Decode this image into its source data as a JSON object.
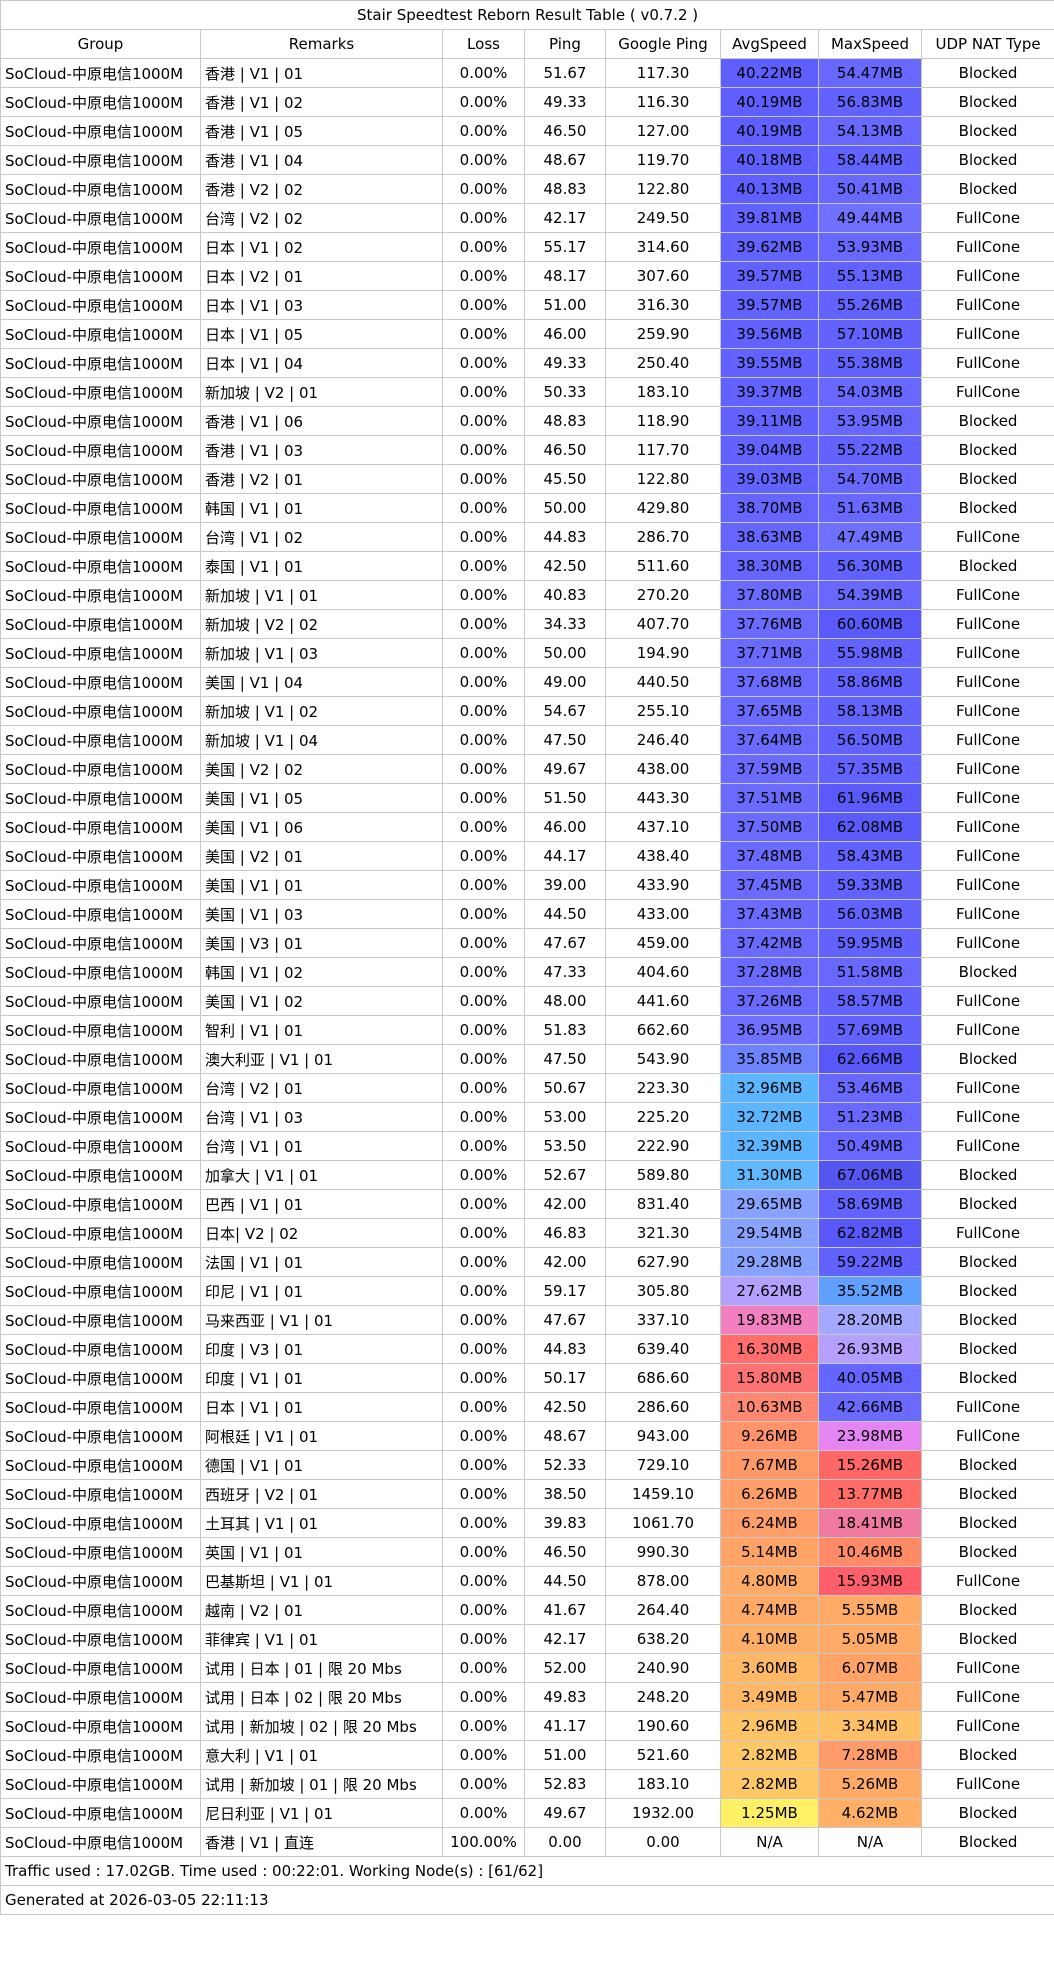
{
  "table": {
    "title": "Stair Speedtest Reborn Result Table ( v0.7.2 )",
    "headers": [
      "Group",
      "Remarks",
      "Loss",
      "Ping",
      "Google Ping",
      "AvgSpeed",
      "MaxSpeed",
      "UDP NAT Type"
    ],
    "rows": [
      [
        "SoCloud-中原电信1000M",
        "香港 | V1 | 01",
        "0.00%",
        "51.67",
        "117.30",
        "40.22MB",
        "54.47MB",
        "Blocked"
      ],
      [
        "SoCloud-中原电信1000M",
        "香港 | V1 | 02",
        "0.00%",
        "49.33",
        "116.30",
        "40.19MB",
        "56.83MB",
        "Blocked"
      ],
      [
        "SoCloud-中原电信1000M",
        "香港 | V1 | 05",
        "0.00%",
        "46.50",
        "127.00",
        "40.19MB",
        "54.13MB",
        "Blocked"
      ],
      [
        "SoCloud-中原电信1000M",
        "香港 | V1 | 04",
        "0.00%",
        "48.67",
        "119.70",
        "40.18MB",
        "58.44MB",
        "Blocked"
      ],
      [
        "SoCloud-中原电信1000M",
        "香港 | V2 | 02",
        "0.00%",
        "48.83",
        "122.80",
        "40.13MB",
        "50.41MB",
        "Blocked"
      ],
      [
        "SoCloud-中原电信1000M",
        "台湾 | V2 | 02",
        "0.00%",
        "42.17",
        "249.50",
        "39.81MB",
        "49.44MB",
        "FullCone"
      ],
      [
        "SoCloud-中原电信1000M",
        "日本 | V1 | 02",
        "0.00%",
        "55.17",
        "314.60",
        "39.62MB",
        "53.93MB",
        "FullCone"
      ],
      [
        "SoCloud-中原电信1000M",
        "日本 | V2 | 01",
        "0.00%",
        "48.17",
        "307.60",
        "39.57MB",
        "55.13MB",
        "FullCone"
      ],
      [
        "SoCloud-中原电信1000M",
        "日本 | V1 | 03",
        "0.00%",
        "51.00",
        "316.30",
        "39.57MB",
        "55.26MB",
        "FullCone"
      ],
      [
        "SoCloud-中原电信1000M",
        "日本 | V1 | 05",
        "0.00%",
        "46.00",
        "259.90",
        "39.56MB",
        "57.10MB",
        "FullCone"
      ],
      [
        "SoCloud-中原电信1000M",
        "日本 | V1 | 04",
        "0.00%",
        "49.33",
        "250.40",
        "39.55MB",
        "55.38MB",
        "FullCone"
      ],
      [
        "SoCloud-中原电信1000M",
        "新加坡 | V2 | 01",
        "0.00%",
        "50.33",
        "183.10",
        "39.37MB",
        "54.03MB",
        "FullCone"
      ],
      [
        "SoCloud-中原电信1000M",
        "香港 | V1 | 06",
        "0.00%",
        "48.83",
        "118.90",
        "39.11MB",
        "53.95MB",
        "Blocked"
      ],
      [
        "SoCloud-中原电信1000M",
        "香港 | V1 | 03",
        "0.00%",
        "46.50",
        "117.70",
        "39.04MB",
        "55.22MB",
        "Blocked"
      ],
      [
        "SoCloud-中原电信1000M",
        "香港 | V2 | 01",
        "0.00%",
        "45.50",
        "122.80",
        "39.03MB",
        "54.70MB",
        "Blocked"
      ],
      [
        "SoCloud-中原电信1000M",
        "韩国 | V1 | 01",
        "0.00%",
        "50.00",
        "429.80",
        "38.70MB",
        "51.63MB",
        "Blocked"
      ],
      [
        "SoCloud-中原电信1000M",
        "台湾 | V1 | 02",
        "0.00%",
        "44.83",
        "286.70",
        "38.63MB",
        "47.49MB",
        "FullCone"
      ],
      [
        "SoCloud-中原电信1000M",
        "泰国 | V1 | 01",
        "0.00%",
        "42.50",
        "511.60",
        "38.30MB",
        "56.30MB",
        "Blocked"
      ],
      [
        "SoCloud-中原电信1000M",
        "新加坡 | V1 | 01",
        "0.00%",
        "40.83",
        "270.20",
        "37.80MB",
        "54.39MB",
        "FullCone"
      ],
      [
        "SoCloud-中原电信1000M",
        "新加坡 | V2 | 02",
        "0.00%",
        "34.33",
        "407.70",
        "37.76MB",
        "60.60MB",
        "FullCone"
      ],
      [
        "SoCloud-中原电信1000M",
        "新加坡 | V1 | 03",
        "0.00%",
        "50.00",
        "194.90",
        "37.71MB",
        "55.98MB",
        "FullCone"
      ],
      [
        "SoCloud-中原电信1000M",
        "美国 | V1 | 04",
        "0.00%",
        "49.00",
        "440.50",
        "37.68MB",
        "58.86MB",
        "FullCone"
      ],
      [
        "SoCloud-中原电信1000M",
        "新加坡 | V1 | 02",
        "0.00%",
        "54.67",
        "255.10",
        "37.65MB",
        "58.13MB",
        "FullCone"
      ],
      [
        "SoCloud-中原电信1000M",
        "新加坡 | V1 | 04",
        "0.00%",
        "47.50",
        "246.40",
        "37.64MB",
        "56.50MB",
        "FullCone"
      ],
      [
        "SoCloud-中原电信1000M",
        "美国 | V2 | 02",
        "0.00%",
        "49.67",
        "438.00",
        "37.59MB",
        "57.35MB",
        "FullCone"
      ],
      [
        "SoCloud-中原电信1000M",
        "美国 | V1 | 05",
        "0.00%",
        "51.50",
        "443.30",
        "37.51MB",
        "61.96MB",
        "FullCone"
      ],
      [
        "SoCloud-中原电信1000M",
        "美国 | V1 | 06",
        "0.00%",
        "46.00",
        "437.10",
        "37.50MB",
        "62.08MB",
        "FullCone"
      ],
      [
        "SoCloud-中原电信1000M",
        "美国 | V2 | 01",
        "0.00%",
        "44.17",
        "438.40",
        "37.48MB",
        "58.43MB",
        "FullCone"
      ],
      [
        "SoCloud-中原电信1000M",
        "美国 | V1 | 01",
        "0.00%",
        "39.00",
        "433.90",
        "37.45MB",
        "59.33MB",
        "FullCone"
      ],
      [
        "SoCloud-中原电信1000M",
        "美国 | V1 | 03",
        "0.00%",
        "44.50",
        "433.00",
        "37.43MB",
        "56.03MB",
        "FullCone"
      ],
      [
        "SoCloud-中原电信1000M",
        "美国 | V3 | 01",
        "0.00%",
        "47.67",
        "459.00",
        "37.42MB",
        "59.95MB",
        "FullCone"
      ],
      [
        "SoCloud-中原电信1000M",
        "韩国 | V1 | 02",
        "0.00%",
        "47.33",
        "404.60",
        "37.28MB",
        "51.58MB",
        "Blocked"
      ],
      [
        "SoCloud-中原电信1000M",
        "美国 | V1 | 02",
        "0.00%",
        "48.00",
        "441.60",
        "37.26MB",
        "58.57MB",
        "FullCone"
      ],
      [
        "SoCloud-中原电信1000M",
        "智利  | V1 | 01",
        "0.00%",
        "51.83",
        "662.60",
        "36.95MB",
        "57.69MB",
        "FullCone"
      ],
      [
        "SoCloud-中原电信1000M",
        "澳大利亚 | V1 | 01",
        "0.00%",
        "47.50",
        "543.90",
        "35.85MB",
        "62.66MB",
        "Blocked"
      ],
      [
        "SoCloud-中原电信1000M",
        "台湾 | V2 | 01",
        "0.00%",
        "50.67",
        "223.30",
        "32.96MB",
        "53.46MB",
        "FullCone"
      ],
      [
        "SoCloud-中原电信1000M",
        "台湾 | V1 | 03",
        "0.00%",
        "53.00",
        "225.20",
        "32.72MB",
        "51.23MB",
        "FullCone"
      ],
      [
        "SoCloud-中原电信1000M",
        "台湾 | V1 | 01",
        "0.00%",
        "53.50",
        "222.90",
        "32.39MB",
        "50.49MB",
        "FullCone"
      ],
      [
        "SoCloud-中原电信1000M",
        "加拿大 | V1 | 01",
        "0.00%",
        "52.67",
        "589.80",
        "31.30MB",
        "67.06MB",
        "Blocked"
      ],
      [
        "SoCloud-中原电信1000M",
        "巴西 | V1 | 01",
        "0.00%",
        "42.00",
        "831.40",
        "29.65MB",
        "58.69MB",
        "Blocked"
      ],
      [
        "SoCloud-中原电信1000M",
        "日本| V2 | 02",
        "0.00%",
        "46.83",
        "321.30",
        "29.54MB",
        "62.82MB",
        "FullCone"
      ],
      [
        "SoCloud-中原电信1000M",
        "法国 | V1 | 01",
        "0.00%",
        "42.00",
        "627.90",
        "29.28MB",
        "59.22MB",
        "Blocked"
      ],
      [
        "SoCloud-中原电信1000M",
        "印尼  | V1 | 01",
        "0.00%",
        "59.17",
        "305.80",
        "27.62MB",
        "35.52MB",
        "Blocked"
      ],
      [
        "SoCloud-中原电信1000M",
        "马来西亚 | V1 | 01",
        "0.00%",
        "47.67",
        "337.10",
        "19.83MB",
        "28.20MB",
        "Blocked"
      ],
      [
        "SoCloud-中原电信1000M",
        "印度 | V3 | 01",
        "0.00%",
        "44.83",
        "639.40",
        "16.30MB",
        "26.93MB",
        "Blocked"
      ],
      [
        "SoCloud-中原电信1000M",
        "印度 | V1 | 01",
        "0.00%",
        "50.17",
        "686.60",
        "15.80MB",
        "40.05MB",
        "Blocked"
      ],
      [
        "SoCloud-中原电信1000M",
        "日本 | V1 | 01",
        "0.00%",
        "42.50",
        "286.60",
        "10.63MB",
        "42.66MB",
        "FullCone"
      ],
      [
        "SoCloud-中原电信1000M",
        "阿根廷 | V1 | 01",
        "0.00%",
        "48.67",
        "943.00",
        "9.26MB",
        "23.98MB",
        "FullCone"
      ],
      [
        "SoCloud-中原电信1000M",
        "德国 | V1 | 01",
        "0.00%",
        "52.33",
        "729.10",
        "7.67MB",
        "15.26MB",
        "Blocked"
      ],
      [
        "SoCloud-中原电信1000M",
        "西班牙  | V2 | 01",
        "0.00%",
        "38.50",
        "1459.10",
        "6.26MB",
        "13.77MB",
        "Blocked"
      ],
      [
        "SoCloud-中原电信1000M",
        "土耳其 | V1 | 01",
        "0.00%",
        "39.83",
        "1061.70",
        "6.24MB",
        "18.41MB",
        "Blocked"
      ],
      [
        "SoCloud-中原电信1000M",
        "英国 | V1 | 01",
        "0.00%",
        "46.50",
        "990.30",
        "5.14MB",
        "10.46MB",
        "Blocked"
      ],
      [
        "SoCloud-中原电信1000M",
        "巴基斯坦 | V1 | 01",
        "0.00%",
        "44.50",
        "878.00",
        "4.80MB",
        "15.93MB",
        "FullCone"
      ],
      [
        "SoCloud-中原电信1000M",
        "越南  | V2 | 01",
        "0.00%",
        "41.67",
        "264.40",
        "4.74MB",
        "5.55MB",
        "Blocked"
      ],
      [
        "SoCloud-中原电信1000M",
        "菲律宾 | V1 | 01",
        "0.00%",
        "42.17",
        "638.20",
        "4.10MB",
        "5.05MB",
        "Blocked"
      ],
      [
        "SoCloud-中原电信1000M",
        "试用 | 日本 | 01 | 限 20 Mbs",
        "0.00%",
        "52.00",
        "240.90",
        "3.60MB",
        "6.07MB",
        "FullCone"
      ],
      [
        "SoCloud-中原电信1000M",
        "试用 | 日本 | 02 | 限 20 Mbs",
        "0.00%",
        "49.83",
        "248.20",
        "3.49MB",
        "5.47MB",
        "FullCone"
      ],
      [
        "SoCloud-中原电信1000M",
        "试用 | 新加坡 | 02 | 限 20 Mbs",
        "0.00%",
        "41.17",
        "190.60",
        "2.96MB",
        "3.34MB",
        "FullCone"
      ],
      [
        "SoCloud-中原电信1000M",
        "意大利 | V1 | 01",
        "0.00%",
        "51.00",
        "521.60",
        "2.82MB",
        "7.28MB",
        "Blocked"
      ],
      [
        "SoCloud-中原电信1000M",
        "试用 | 新加坡 | 01 | 限 20 Mbs",
        "0.00%",
        "52.83",
        "183.10",
        "2.82MB",
        "5.26MB",
        "FullCone"
      ],
      [
        "SoCloud-中原电信1000M",
        "尼日利亚 | V1 | 01",
        "0.00%",
        "49.67",
        "1932.00",
        "1.25MB",
        "4.62MB",
        "Blocked"
      ],
      [
        "SoCloud-中原电信1000M",
        "香港 | V1 | 直连",
        "100.00%",
        "0.00",
        "0.00",
        "N/A",
        "N/A",
        "Blocked"
      ]
    ],
    "speed_colors": [
      [
        "#5f5fff",
        "#6868ff"
      ],
      [
        "#5f5fff",
        "#6262ff"
      ],
      [
        "#5f5fff",
        "#6868ff"
      ],
      [
        "#5f5fff",
        "#6262ff"
      ],
      [
        "#5f5fff",
        "#6868ff"
      ],
      [
        "#6262ff",
        "#7070ff"
      ],
      [
        "#6262ff",
        "#6868ff"
      ],
      [
        "#6262ff",
        "#6262ff"
      ],
      [
        "#6262ff",
        "#6262ff"
      ],
      [
        "#6262ff",
        "#6262ff"
      ],
      [
        "#6262ff",
        "#6262ff"
      ],
      [
        "#6262ff",
        "#6868ff"
      ],
      [
        "#6262ff",
        "#6868ff"
      ],
      [
        "#6262ff",
        "#6262ff"
      ],
      [
        "#6262ff",
        "#6868ff"
      ],
      [
        "#6666ff",
        "#6868ff"
      ],
      [
        "#6666ff",
        "#7070ff"
      ],
      [
        "#6666ff",
        "#6262ff"
      ],
      [
        "#6a6aff",
        "#6868ff"
      ],
      [
        "#6a6aff",
        "#5a5afa"
      ],
      [
        "#6a6aff",
        "#6262ff"
      ],
      [
        "#6a6aff",
        "#6262ff"
      ],
      [
        "#6a6aff",
        "#6262ff"
      ],
      [
        "#6a6aff",
        "#6262ff"
      ],
      [
        "#6a6aff",
        "#6262ff"
      ],
      [
        "#6a6aff",
        "#5a5afa"
      ],
      [
        "#6a6aff",
        "#5a5afa"
      ],
      [
        "#6a6aff",
        "#6262ff"
      ],
      [
        "#6a6aff",
        "#6262ff"
      ],
      [
        "#6a6aff",
        "#6262ff"
      ],
      [
        "#6a6aff",
        "#6262ff"
      ],
      [
        "#6a6aff",
        "#6868ff"
      ],
      [
        "#6a6aff",
        "#6262ff"
      ],
      [
        "#6f70ff",
        "#6262ff"
      ],
      [
        "#6d82ff",
        "#5858f8"
      ],
      [
        "#5bb5ff",
        "#6868ff"
      ],
      [
        "#5bb5ff",
        "#6868ff"
      ],
      [
        "#5bb5ff",
        "#6868ff"
      ],
      [
        "#62b8ff",
        "#5555f0"
      ],
      [
        "#88a2ff",
        "#6262ff"
      ],
      [
        "#88a2ff",
        "#5858f8"
      ],
      [
        "#88a2ff",
        "#6262ff"
      ],
      [
        "#b4a0ff",
        "#5f9fff"
      ],
      [
        "#f27fc0",
        "#a5a8ff"
      ],
      [
        "#ff6d6d",
        "#b5a0ff"
      ],
      [
        "#ff7272",
        "#6565ff"
      ],
      [
        "#ff8872",
        "#6a6aff"
      ],
      [
        "#ff946c",
        "#e485f2"
      ],
      [
        "#ff9a68",
        "#ff6666"
      ],
      [
        "#ff9e68",
        "#ff6e66"
      ],
      [
        "#ff9e68",
        "#f07aa0"
      ],
      [
        "#ffa466",
        "#ff8a66"
      ],
      [
        "#ffaa66",
        "#ff5f6a"
      ],
      [
        "#ffaa66",
        "#ffaa66"
      ],
      [
        "#ffae66",
        "#ffaa66"
      ],
      [
        "#ffb866",
        "#ffa466"
      ],
      [
        "#ffb866",
        "#ffaa66"
      ],
      [
        "#ffc466",
        "#ffc066"
      ],
      [
        "#ffc866",
        "#ff9c6a"
      ],
      [
        "#ffc866",
        "#ffaa66"
      ],
      [
        "#fff066",
        "#ffb066"
      ],
      [
        "#ffffff",
        "#ffffff"
      ]
    ],
    "footer": [
      "Traffic used : 17.02GB. Time used : 00:22:01. Working Node(s) : [61/62]",
      "Generated at 2026-03-05 22:11:13"
    ]
  }
}
